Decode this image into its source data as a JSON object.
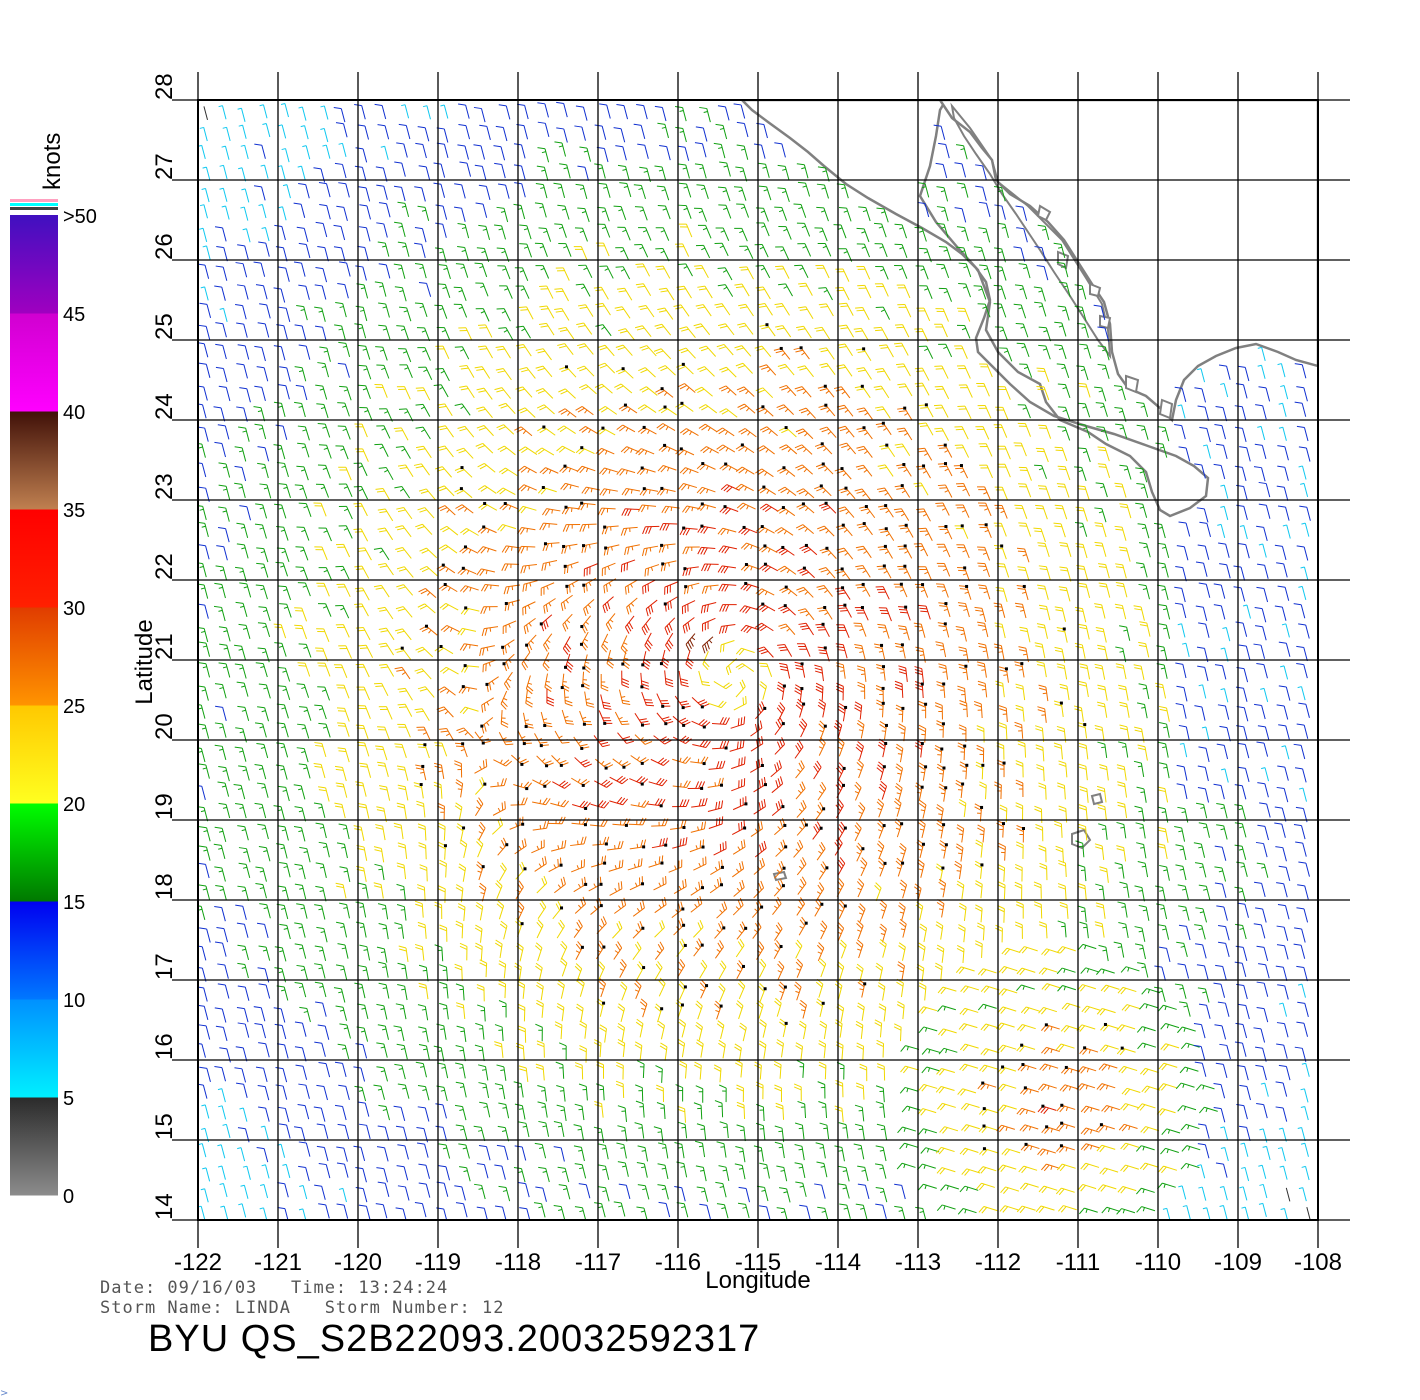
{
  "chart_data": {
    "type": "wind-barb-map",
    "title": "",
    "xlabel": "Longitude",
    "ylabel": "Latitude",
    "xlim": [
      -122,
      -108
    ],
    "ylim": [
      14,
      28
    ],
    "x_ticks": [
      "-122",
      "-121",
      "-120",
      "-119",
      "-118",
      "-117",
      "-116",
      "-115",
      "-114",
      "-113",
      "-112",
      "-111",
      "-110",
      "-109",
      "-108"
    ],
    "y_ticks": [
      "14",
      "15",
      "16",
      "17",
      "18",
      "19",
      "20",
      "21",
      "22",
      "23",
      "24",
      "25",
      "26",
      "27",
      "28"
    ],
    "grid": true,
    "storm_center": {
      "lon": -115.3,
      "lat": 20.8
    },
    "secondary_max": {
      "lon": -111.4,
      "lat": 15.5
    }
  },
  "colorbar": {
    "label": "knots",
    "ticks": [
      "0",
      "5",
      "10",
      "15",
      "20",
      "25",
      "30",
      "35",
      "40",
      "45",
      ">50"
    ],
    "bands": [
      {
        "from": 0,
        "to": 5,
        "colors": [
          "#8c8c8c",
          "#2a2a2a"
        ]
      },
      {
        "from": 5,
        "to": 10,
        "colors": [
          "#00f0ff",
          "#0090ff"
        ]
      },
      {
        "from": 10,
        "to": 15,
        "colors": [
          "#0078ff",
          "#0000f0"
        ]
      },
      {
        "from": 15,
        "to": 20,
        "colors": [
          "#007800",
          "#00ff00"
        ]
      },
      {
        "from": 20,
        "to": 25,
        "colors": [
          "#ffff20",
          "#ffc800"
        ]
      },
      {
        "from": 25,
        "to": 30,
        "colors": [
          "#ff9400",
          "#e03c00"
        ]
      },
      {
        "from": 30,
        "to": 35,
        "colors": [
          "#ff2000",
          "#ff0000"
        ]
      },
      {
        "from": 35,
        "to": 40,
        "colors": [
          "#c08050",
          "#401008"
        ]
      },
      {
        "from": 40,
        "to": 45,
        "colors": [
          "#ff00ff",
          "#d000d0"
        ]
      },
      {
        "from": 45,
        "to": 50,
        "colors": [
          "#a000c0",
          "#4010c0"
        ]
      }
    ],
    "cap_colors": [
      "#ffa0c0",
      "#00ffff",
      "#404040"
    ]
  },
  "footer": {
    "date_line": "Date: 09/16/03   Time: 13:24:24",
    "storm_line": "Storm Name: LINDA   Storm Number: 12",
    "product": "BYU QS_S2B22093.20032592317"
  },
  "coastline_color": "#808080"
}
